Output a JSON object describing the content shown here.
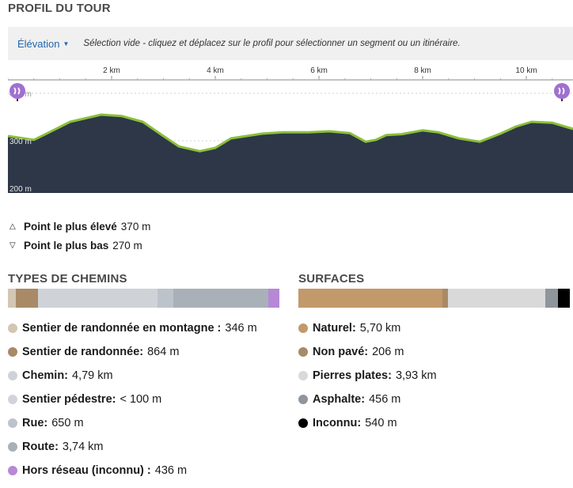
{
  "profile_title": "PROFIL DU TOUR",
  "toolbar": {
    "mode_label": "Élévation",
    "hint": "Sélection vide - cliquez et déplacez sur le profil pour sélectionner un segment ou un itinéraire."
  },
  "chart_data": {
    "type": "area",
    "x_unit": "km",
    "x_ticks": [
      "2 km",
      "4 km",
      "6 km",
      "8 km",
      "10 km"
    ],
    "y_ticks": [
      "400 m",
      "300 m",
      "200 m"
    ],
    "xlim": [
      0,
      10.9
    ],
    "ylim": [
      190,
      420
    ],
    "x": [
      0,
      0.5,
      0.8,
      1.2,
      1.8,
      2.2,
      2.6,
      3.0,
      3.3,
      3.7,
      4.0,
      4.3,
      4.6,
      4.9,
      5.3,
      5.8,
      6.2,
      6.6,
      6.9,
      7.1,
      7.3,
      7.6,
      8.0,
      8.3,
      8.7,
      9.1,
      9.5,
      9.8,
      10.1,
      10.5,
      10.9
    ],
    "y": [
      310,
      302,
      318,
      340,
      355,
      352,
      340,
      310,
      288,
      278,
      285,
      305,
      310,
      315,
      318,
      318,
      320,
      316,
      298,
      302,
      312,
      314,
      322,
      318,
      305,
      298,
      315,
      330,
      340,
      338,
      325
    ],
    "start_icon": "waypoint-start-icon",
    "end_icon": "waypoint-end-icon",
    "colors": {
      "fill": "#2d3748",
      "line": "#8bbf3a",
      "highlight": "#c9a24a"
    }
  },
  "extremes": {
    "highest_label": "Point le plus élevé",
    "highest_value": "370 m",
    "lowest_label": "Point le plus bas",
    "lowest_value": "270 m"
  },
  "types": {
    "title": "TYPES DE CHEMINS",
    "bar": [
      {
        "color": "#d3c6b3",
        "fraction": 0.03
      },
      {
        "color": "#a88a66",
        "fraction": 0.08
      },
      {
        "color": "#cfd3d8",
        "fraction": 0.44
      },
      {
        "color": "#bcc3cb",
        "fraction": 0.06
      },
      {
        "color": "#a9b0b8",
        "fraction": 0.35
      },
      {
        "color": "#b688d6",
        "fraction": 0.04
      }
    ],
    "items": [
      {
        "name": "Sentier de randonnée en montagne :",
        "value": "346 m",
        "color": "#d3c6b3"
      },
      {
        "name": "Sentier de randonnée:",
        "value": "864 m",
        "color": "#a88a66"
      },
      {
        "name": "Chemin:",
        "value": "4,79 km",
        "color": "#cfd3d8"
      },
      {
        "name": "Sentier pédestre:",
        "value": "< 100 m",
        "color": "#d0d4da"
      },
      {
        "name": "Rue:",
        "value": "650 m",
        "color": "#bcc3cb"
      },
      {
        "name": "Route:",
        "value": "3,74 km",
        "color": "#a9b0b8"
      },
      {
        "name": "Hors réseau (inconnu) :",
        "value": "436 m",
        "color": "#b688d6"
      }
    ]
  },
  "surfaces": {
    "title": "SURFACES",
    "bar": [
      {
        "color": "#c2996a",
        "fraction": 0.53
      },
      {
        "color": "#a88a66",
        "fraction": 0.02
      },
      {
        "color": "#d9d9d9",
        "fraction": 0.36
      },
      {
        "color": "#8e959c",
        "fraction": 0.045
      },
      {
        "color": "#000000",
        "fraction": 0.045
      }
    ],
    "items": [
      {
        "name": "Naturel:",
        "value": "5,70 km",
        "color": "#c2996a"
      },
      {
        "name": "Non pavé:",
        "value": "206 m",
        "color": "#a88a66"
      },
      {
        "name": "Pierres plates:",
        "value": "3,93 km",
        "color": "#d9d9d9"
      },
      {
        "name": "Asphalte:",
        "value": "456 m",
        "color": "#8e959c"
      },
      {
        "name": "Inconnu:",
        "value": "540 m",
        "color": "#000000"
      }
    ]
  }
}
